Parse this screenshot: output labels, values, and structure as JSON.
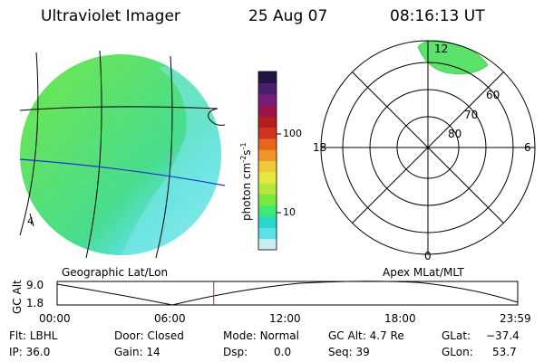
{
  "header": {
    "instrument": "Ultraviolet Imager",
    "date": "25 Aug 07",
    "time": "08:16:13 UT"
  },
  "colorbar": {
    "label": "photon cm",
    "label_sup1": "-2",
    "label_mid": "s",
    "label_sup2": "-1",
    "ticks": [
      "100",
      "10"
    ],
    "colors": [
      "#c8eef0",
      "#5ae0e6",
      "#28d8c8",
      "#3ce878",
      "#7ae83c",
      "#b4e83c",
      "#e6e63c",
      "#f0c83c",
      "#f09628",
      "#e6641e",
      "#d2321e",
      "#b41e1e",
      "#9a1450",
      "#781e78",
      "#4b1e6e",
      "#231446"
    ]
  },
  "left_panel": {
    "title": "Geographic Lat/Lon",
    "mark": "4"
  },
  "right_panel": {
    "title": "Apex MLat/MLT",
    "ring_labels": [
      "80",
      "70",
      "60"
    ],
    "mlt_labels": {
      "top": "12",
      "left": "18",
      "right": "6",
      "bottom": "0"
    }
  },
  "timeline": {
    "ylabel": "GC Alt",
    "y_ticks": [
      "9.0",
      "1.8"
    ],
    "x_ticks": [
      "00:00",
      "06:00",
      "12:00",
      "18:00",
      "23:59"
    ],
    "current_time_fraction": 0.34,
    "marker_color": "#c8281e"
  },
  "status": {
    "filter_label": "Flt:",
    "filter_value": "LBHL",
    "door_label": "Door:",
    "door_value": "Closed",
    "mode_label": "Mode:",
    "mode_value": "Normal",
    "gcalt_label": "GC Alt:",
    "gcalt_value": "4.7 Re",
    "glat_label": "GLat:",
    "glat_value": "−37.4",
    "ip_label": "IP:",
    "ip_value": "36.0",
    "gain_label": "Gain:",
    "gain_value": "14",
    "dsp_label": "Dsp:",
    "dsp_value": "0.0",
    "seq_label": "Seq:",
    "seq_value": "39",
    "glon_label": "GLon:",
    "glon_value": "53.7"
  }
}
